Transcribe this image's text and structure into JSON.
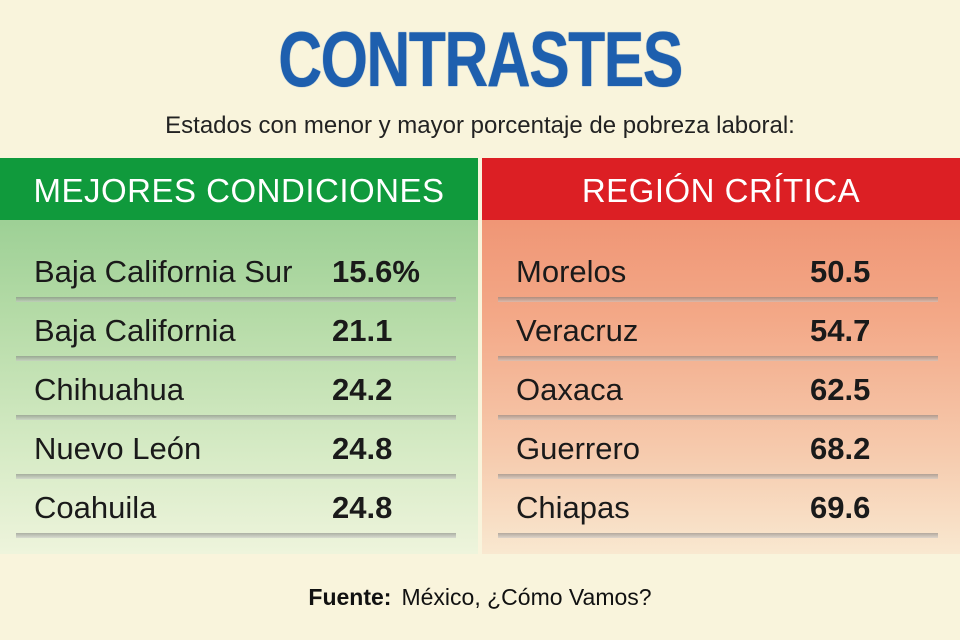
{
  "title": "CONTRASTES",
  "subtitle": "Estados con menor y mayor porcentaje de pobreza laboral:",
  "chart_data": {
    "type": "table",
    "title": "CONTRASTES",
    "subtitle": "Estados con menor y mayor porcentaje de pobreza laboral:",
    "tables": [
      {
        "header": "MEJORES CONDICIONES",
        "rows": [
          {
            "name": "Baja California Sur",
            "value_label": "15.6%",
            "value": 15.6
          },
          {
            "name": "Baja California",
            "value_label": "21.1",
            "value": 21.1
          },
          {
            "name": "Chihuahua",
            "value_label": "24.2",
            "value": 24.2
          },
          {
            "name": "Nuevo León",
            "value_label": "24.8",
            "value": 24.8
          },
          {
            "name": "Coahuila",
            "value_label": "24.8",
            "value": 24.8
          }
        ]
      },
      {
        "header": "REGIÓN CRÍTICA",
        "rows": [
          {
            "name": "Morelos",
            "value_label": "50.5",
            "value": 50.5
          },
          {
            "name": "Veracruz",
            "value_label": "54.7",
            "value": 54.7
          },
          {
            "name": "Oaxaca",
            "value_label": "62.5",
            "value": 62.5
          },
          {
            "name": "Guerrero",
            "value_label": "68.2",
            "value": 68.2
          },
          {
            "name": "Chiapas",
            "value_label": "69.6",
            "value": 69.6
          }
        ]
      }
    ]
  },
  "source": {
    "label": "Fuente:",
    "text": "México, ¿Cómo Vamos?"
  },
  "colors": {
    "title": "#1e5fae",
    "left_header": "#109a3c",
    "right_header": "#dc1f24",
    "background": "#f9f4dc"
  }
}
